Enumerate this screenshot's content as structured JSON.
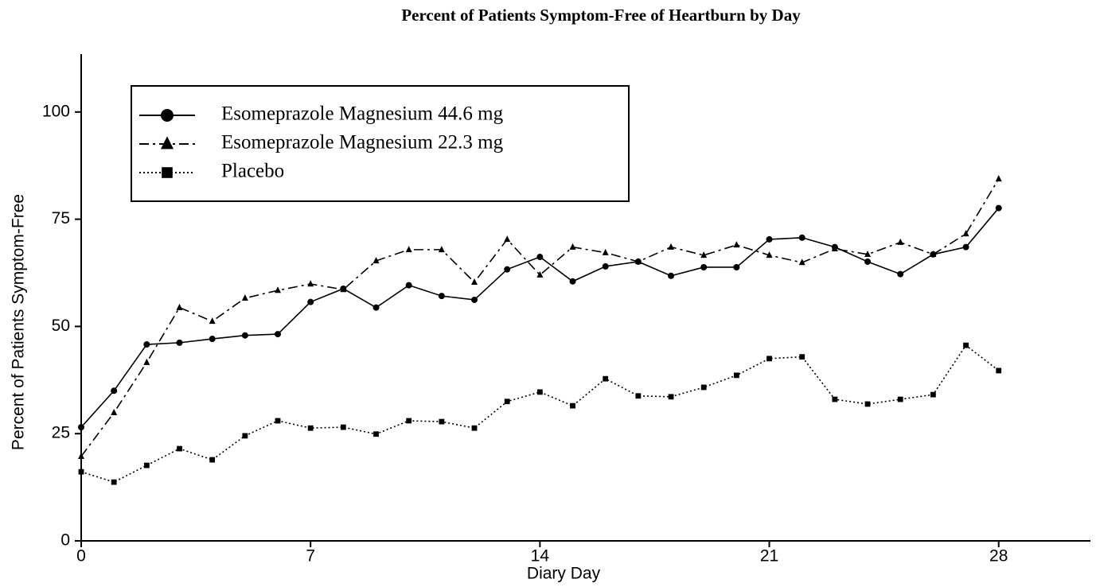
{
  "chart_data": {
    "type": "line",
    "title": "Percent of Patients Symptom-Free of Heartburn by Day",
    "x_label": "Diary Day",
    "y_label": "Percent of Patients Symptom-Free",
    "x": [
      0,
      1,
      2,
      3,
      4,
      5,
      6,
      7,
      8,
      9,
      10,
      11,
      12,
      13,
      14,
      15,
      16,
      17,
      18,
      19,
      20,
      21,
      22,
      23,
      24,
      25,
      26,
      27,
      28
    ],
    "series": [
      {
        "name": "Esomeprazole Magnesium 44.6 mg",
        "color": "#000000",
        "marker": "circle",
        "dash": "solid",
        "values": [
          26.5,
          35,
          45.8,
          46.2,
          47.1,
          47.9,
          48.2,
          55.7,
          58.8,
          54.4,
          59.6,
          57.1,
          56.2,
          63.3,
          66.2,
          60.5,
          64,
          65.1,
          61.8,
          63.8,
          63.8,
          70.3,
          70.7,
          68.5,
          65.1,
          62.2,
          66.8,
          68.5,
          77.6
        ]
      },
      {
        "name": "Esomeprazole Magnesium 22.3 mg",
        "color": "#000000",
        "marker": "triangle",
        "dash": "dashdot",
        "values": [
          19.7,
          29.9,
          41.6,
          54.4,
          51.2,
          56.6,
          58.4,
          59.9,
          58.6,
          65.3,
          67.9,
          67.9,
          60.3,
          70.3,
          62,
          68.5,
          67.2,
          65.1,
          68.5,
          66.6,
          69,
          66.6,
          64.9,
          68.1,
          66.8,
          69.6,
          66.8,
          71.6,
          84.4
        ]
      },
      {
        "name": "Placebo",
        "color": "#000000",
        "marker": "square",
        "dash": "dotted",
        "values": [
          16.1,
          13.7,
          17.6,
          21.5,
          18.9,
          24.5,
          28,
          26.3,
          26.5,
          24.9,
          28,
          27.8,
          26.3,
          32.5,
          34.7,
          31.5,
          37.8,
          33.8,
          33.6,
          35.8,
          38.6,
          42.5,
          42.9,
          33,
          31.9,
          33,
          34.1,
          45.6,
          39.7
        ]
      }
    ],
    "xlim": [
      0,
      30.8
    ],
    "xticks": [
      0,
      7,
      14,
      21,
      28
    ],
    "ylim": [
      0,
      113.5
    ],
    "yticks": [
      0,
      25,
      50,
      75,
      100
    ],
    "grid": false,
    "legend": "upper left"
  }
}
